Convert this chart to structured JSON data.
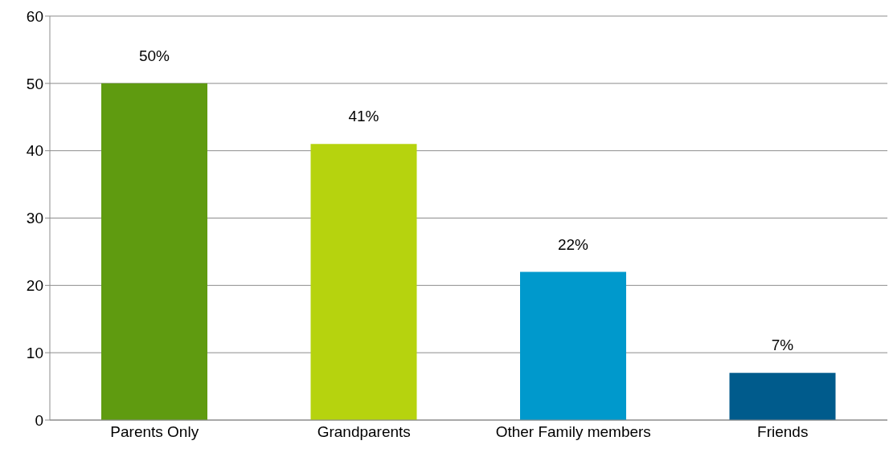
{
  "chart_data": {
    "type": "bar",
    "categories": [
      "Parents Only",
      "Grandparents",
      "Other Family members",
      "Friends"
    ],
    "values": [
      50,
      41,
      22,
      7
    ],
    "colors": [
      "#5f9b10",
      "#b6d30e",
      "#0099cc",
      "#005b8c"
    ],
    "value_labels": [
      "50%",
      "41%",
      "22%",
      "7%"
    ],
    "ylim": [
      0,
      60
    ],
    "yticks": [
      0,
      10,
      20,
      30,
      40,
      50,
      60
    ],
    "grid": "y"
  }
}
